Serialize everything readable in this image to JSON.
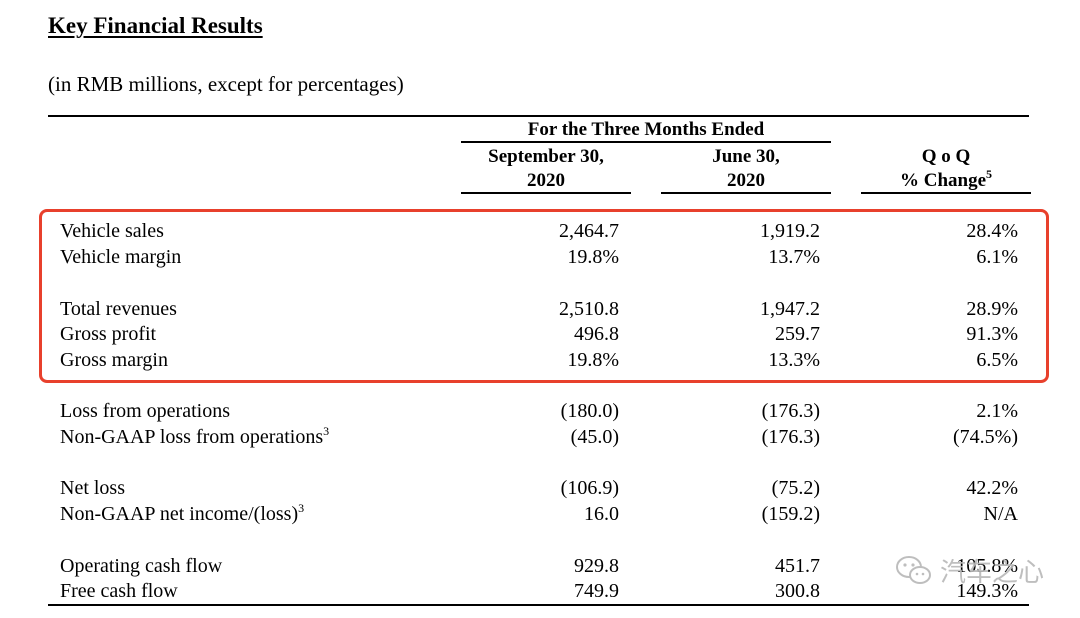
{
  "title": "Key Financial Results",
  "subtitle": "(in RMB millions, except for percentages)",
  "header": {
    "group": "For the Three Months Ended",
    "col1": [
      "September 30,",
      "2020"
    ],
    "col2": [
      "June 30,",
      "2020"
    ],
    "col3_line1": "Q o Q",
    "col3_line2": "% Change",
    "col3_footnote": "5"
  },
  "rows": [
    {
      "label": "Vehicle sales",
      "sup": "",
      "q3": "2,464.7",
      "q2": "1,919.2",
      "qoq": "28.4%"
    },
    {
      "label": "Vehicle margin",
      "sup": "",
      "q3": "19.8%",
      "q2": "13.7%",
      "qoq": "6.1%"
    },
    {
      "label": "Total revenues",
      "sup": "",
      "q3": "2,510.8",
      "q2": "1,947.2",
      "qoq": "28.9%"
    },
    {
      "label": "Gross profit",
      "sup": "",
      "q3": "496.8",
      "q2": "259.7",
      "qoq": "91.3%"
    },
    {
      "label": "Gross margin",
      "sup": "",
      "q3": "19.8%",
      "q2": "13.3%",
      "qoq": "6.5%"
    },
    {
      "label": "Loss from operations",
      "sup": "",
      "q3": "(180.0)",
      "q2": "(176.3)",
      "qoq": "2.1%"
    },
    {
      "label": "Non-GAAP loss from operations",
      "sup": "3",
      "q3": "(45.0)",
      "q2": "(176.3)",
      "qoq": "(74.5%)"
    },
    {
      "label": "Net loss",
      "sup": "",
      "q3": "(106.9)",
      "q2": "(75.2)",
      "qoq": "42.2%"
    },
    {
      "label": "Non-GAAP net income/(loss)",
      "sup": "3",
      "q3": "16.0",
      "q2": "(159.2)",
      "qoq": "N/A"
    },
    {
      "label": "Operating cash flow",
      "sup": "",
      "q3": "929.8",
      "q2": "451.7",
      "qoq": "105.8%"
    },
    {
      "label": "Free cash flow",
      "sup": "",
      "q3": "749.9",
      "q2": "300.8",
      "qoq": "149.3%"
    }
  ],
  "watermark": {
    "text": "汽车之心",
    "icon": "wechat-icon"
  },
  "colors": {
    "highlight_border": "#e8402c",
    "watermark": "#b8b8b8"
  }
}
